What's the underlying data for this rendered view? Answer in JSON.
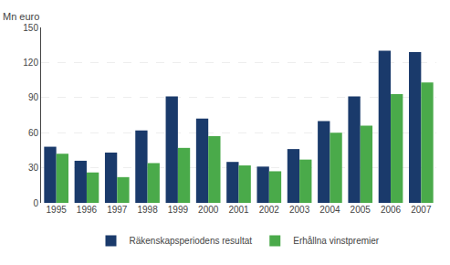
{
  "chart_data": {
    "type": "bar",
    "ylabel": "Mn euro",
    "categories": [
      "1995",
      "1996",
      "1997",
      "1998",
      "1999",
      "2000",
      "2001",
      "2002",
      "2003",
      "2004",
      "2005",
      "2006",
      "2007"
    ],
    "series": [
      {
        "name": "Räkenskapsperiodens resultat",
        "color": "#1a3a6b",
        "values": [
          48,
          36,
          43,
          62,
          91,
          72,
          35,
          31,
          46,
          70,
          91,
          130,
          129
        ]
      },
      {
        "name": "Erhållna vinstpremier",
        "color": "#4aaa4a",
        "values": [
          42,
          26,
          22,
          34,
          47,
          57,
          32,
          27,
          37,
          60,
          66,
          93,
          103
        ]
      }
    ],
    "ylim": [
      0,
      150
    ],
    "yticks": [
      0,
      30,
      60,
      90,
      120,
      150
    ],
    "grid": true,
    "legend": "bottom"
  }
}
